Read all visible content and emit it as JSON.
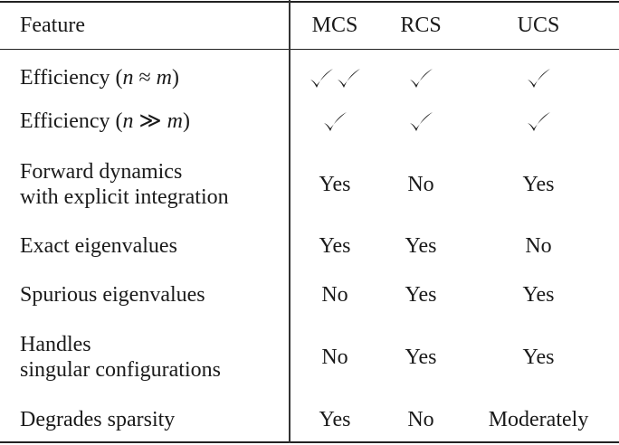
{
  "table": {
    "headers": [
      "Feature",
      "MCS",
      "RCS",
      "UCS"
    ],
    "rows": [
      {
        "feature": [
          "Efficiency (",
          "n",
          " ≈ ",
          "m",
          ")"
        ],
        "values": [
          "✓✓",
          "✓",
          "✓"
        ]
      },
      {
        "feature": [
          "Efficiency (",
          "n",
          " ≫ ",
          "m",
          ")"
        ],
        "values": [
          "✓",
          "✓",
          "✓"
        ]
      },
      {
        "feature_lines": [
          "Forward dynamics",
          "with explicit integration"
        ],
        "values": [
          "Yes",
          "No",
          "Yes"
        ]
      },
      {
        "feature_lines": [
          "Exact eigenvalues"
        ],
        "values": [
          "Yes",
          "Yes",
          "No"
        ]
      },
      {
        "feature_lines": [
          "Spurious eigenvalues"
        ],
        "values": [
          "No",
          "Yes",
          "Yes"
        ]
      },
      {
        "feature_lines": [
          "Handles",
          "singular configurations"
        ],
        "values": [
          "No",
          "Yes",
          "Yes"
        ]
      },
      {
        "feature_lines": [
          "Degrades sparsity"
        ],
        "values": [
          "Yes",
          "No",
          "Moderately"
        ]
      }
    ]
  }
}
